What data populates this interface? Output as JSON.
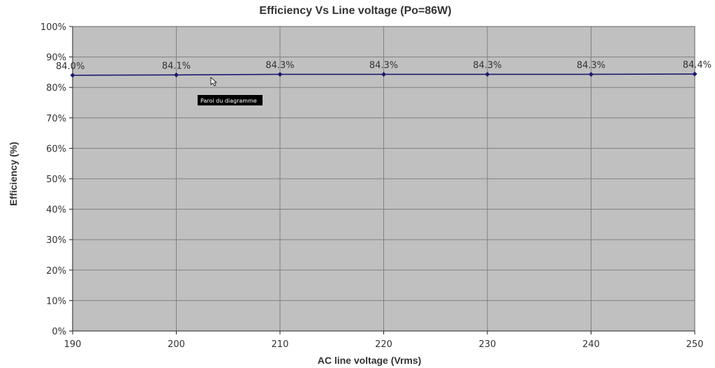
{
  "chart_data": {
    "type": "line",
    "title": "Efficiency Vs Line voltage (Po=86W)",
    "xlabel": "AC line voltage (Vrms)",
    "ylabel": "Efficiency (%)",
    "xlim": [
      190,
      250
    ],
    "ylim": [
      0,
      100
    ],
    "x_ticks": [
      190,
      200,
      210,
      220,
      230,
      240,
      250
    ],
    "y_ticks": [
      0,
      10,
      20,
      30,
      40,
      50,
      60,
      70,
      80,
      90,
      100
    ],
    "y_tick_suffix": "%",
    "grid": true,
    "legend": "none",
    "series": [
      {
        "x": [
          190,
          200,
          210,
          220,
          230,
          240,
          250
        ],
        "values": [
          84.0,
          84.1,
          84.3,
          84.3,
          84.3,
          84.3,
          84.4
        ],
        "data_labels": [
          "84.0%",
          "84.1%",
          "84.3%",
          "84.3%",
          "84.3%",
          "84.3%",
          "84.4%"
        ],
        "color": "#1a1a6e"
      }
    ],
    "colors": {
      "plot_background": "#c0c0c0",
      "gridline": "#808080",
      "series_line": "#1a1a6e"
    }
  },
  "tooltip": {
    "text": "Paroi du diagramme"
  }
}
